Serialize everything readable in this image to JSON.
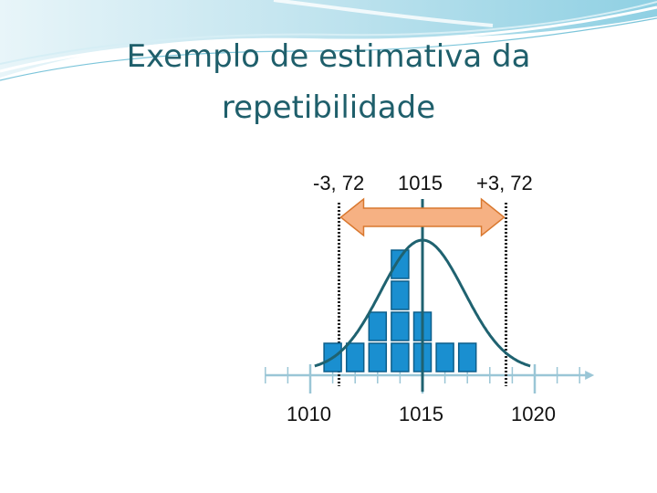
{
  "title": {
    "line1": "Exemplo de estimativa da",
    "line2": "repetibilidade"
  },
  "interval": {
    "minus_label": "-3, 72",
    "center_label": "1015",
    "plus_label": "+3, 72"
  },
  "axis": {
    "tick_labels": [
      "1010",
      "1015",
      "1020"
    ],
    "min": 1008,
    "max": 1022,
    "mean": 1015,
    "half_width": 3.72
  },
  "histogram": {
    "columns": [
      {
        "x": 1011,
        "count": 1
      },
      {
        "x": 1012,
        "count": 1
      },
      {
        "x": 1013,
        "count": 2
      },
      {
        "x": 1014,
        "count": 4
      },
      {
        "x": 1015,
        "count": 2
      },
      {
        "x": 1016,
        "count": 1
      },
      {
        "x": 1017,
        "count": 1
      }
    ]
  },
  "colors": {
    "title": "#1f5f6b",
    "bar_fill": "#1a8fd0",
    "bar_stroke": "#0d5e8a",
    "curve": "#1f6270",
    "axis": "#9ac6d6",
    "arrow_fill": "#f6b183",
    "arrow_stroke": "#d9782f",
    "dotted": "#222222"
  }
}
